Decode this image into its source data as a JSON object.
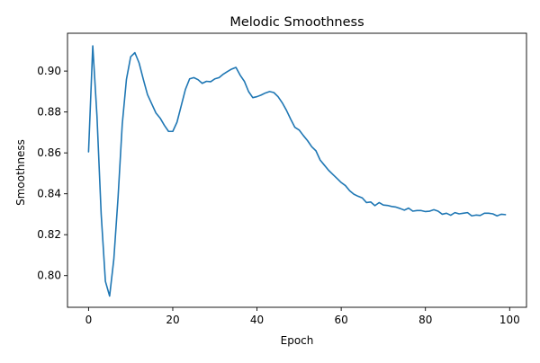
{
  "chart_data": {
    "type": "line",
    "title": "Melodic Smoothness",
    "xlabel": "Epoch",
    "ylabel": "Smoothness",
    "xlim": [
      -5,
      104
    ],
    "ylim": [
      0.7845,
      0.9185
    ],
    "xticks": [
      0,
      20,
      40,
      60,
      80,
      100
    ],
    "xtick_labels": [
      "0",
      "20",
      "40",
      "60",
      "80",
      "100"
    ],
    "yticks": [
      0.8,
      0.82,
      0.84,
      0.86,
      0.88,
      0.9
    ],
    "ytick_labels": [
      "0.80",
      "0.82",
      "0.84",
      "0.86",
      "0.88",
      "0.90"
    ],
    "grid": false,
    "series": [
      {
        "name": "Smoothness",
        "color": "#1f77b4",
        "x": [
          0,
          1,
          2,
          3,
          4,
          5,
          6,
          7,
          8,
          9,
          10,
          11,
          12,
          13,
          14,
          15,
          16,
          17,
          18,
          19,
          20,
          21,
          22,
          23,
          24,
          25,
          26,
          27,
          28,
          29,
          30,
          31,
          32,
          33,
          34,
          35,
          36,
          37,
          38,
          39,
          40,
          41,
          42,
          43,
          44,
          45,
          46,
          47,
          48,
          49,
          50,
          51,
          52,
          53,
          54,
          55,
          56,
          57,
          58,
          59,
          60,
          61,
          62,
          63,
          64,
          65,
          66,
          67,
          68,
          69,
          70,
          71,
          72,
          73,
          74,
          75,
          76,
          77,
          78,
          79,
          80,
          81,
          82,
          83,
          84,
          85,
          86,
          87,
          88,
          89,
          90,
          91,
          92,
          93,
          94,
          95,
          96,
          97,
          98,
          99
        ],
        "values": [
          0.8605,
          0.9123,
          0.878,
          0.83,
          0.7972,
          0.79,
          0.808,
          0.838,
          0.874,
          0.896,
          0.907,
          0.909,
          0.904,
          0.896,
          0.8885,
          0.884,
          0.8795,
          0.877,
          0.8735,
          0.8705,
          0.8705,
          0.875,
          0.883,
          0.891,
          0.8962,
          0.8968,
          0.8958,
          0.894,
          0.895,
          0.8948,
          0.8962,
          0.8968,
          0.8985,
          0.8998,
          0.901,
          0.9018,
          0.898,
          0.895,
          0.89,
          0.887,
          0.8875,
          0.8883,
          0.8893,
          0.89,
          0.8895,
          0.8875,
          0.8845,
          0.8808,
          0.8765,
          0.8725,
          0.8712,
          0.8685,
          0.866,
          0.863,
          0.861,
          0.8565,
          0.854,
          0.8515,
          0.8495,
          0.8475,
          0.8455,
          0.844,
          0.8415,
          0.8398,
          0.8388,
          0.838,
          0.8357,
          0.836,
          0.8342,
          0.8357,
          0.8345,
          0.8343,
          0.8338,
          0.8335,
          0.8328,
          0.832,
          0.833,
          0.8315,
          0.8318,
          0.8318,
          0.8313,
          0.8315,
          0.8322,
          0.8315,
          0.83,
          0.8305,
          0.8295,
          0.8308,
          0.8302,
          0.8305,
          0.8308,
          0.8292,
          0.8296,
          0.8294,
          0.8305,
          0.8305,
          0.8302,
          0.8292,
          0.83,
          0.8298
        ]
      }
    ]
  }
}
